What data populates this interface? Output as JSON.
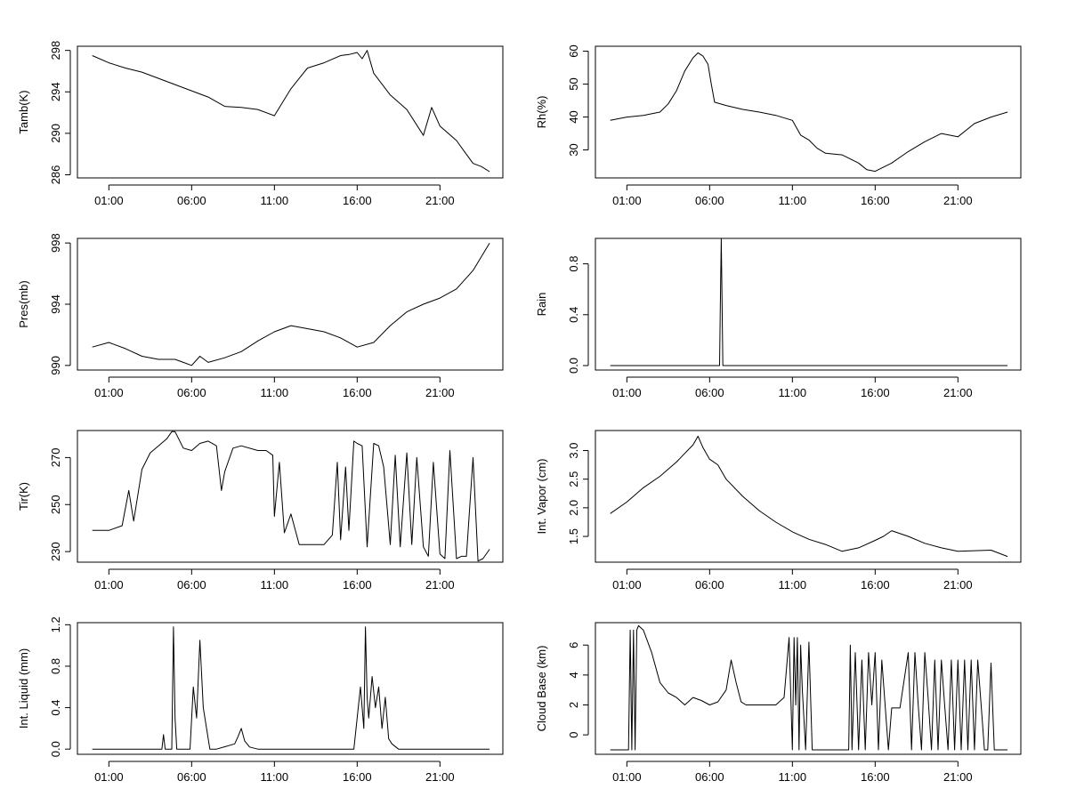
{
  "chart_data": [
    {
      "type": "line",
      "ylabel": "Tamb(K)",
      "xlabel": "",
      "title": "",
      "grid": false,
      "x_ticks": [
        "01:00",
        "06:00",
        "11:00",
        "16:00",
        "21:00"
      ],
      "x_tick_hours": [
        1,
        6,
        11,
        16,
        21
      ],
      "xlim_hours": [
        -0.9,
        24.8
      ],
      "ylim": [
        285.7,
        298.4
      ],
      "y_ticks": [
        286,
        290,
        294,
        298
      ],
      "y_tick_labels": [
        "286",
        "290",
        "294",
        "298"
      ],
      "series": [
        {
          "x": [
            0,
            1,
            2,
            3,
            4,
            5,
            6,
            7,
            8,
            9,
            10,
            11,
            11.5,
            12,
            12.5,
            13,
            14,
            15,
            15.5,
            16,
            16.3,
            16.6,
            17,
            18,
            19,
            20,
            20.5,
            21,
            22,
            22.5,
            23,
            23.5,
            24
          ],
          "values": [
            297.5,
            296.8,
            296.3,
            295.9,
            295.3,
            294.7,
            294.1,
            293.5,
            292.6,
            292.5,
            292.3,
            291.7,
            293.0,
            294.3,
            295.3,
            296.3,
            296.8,
            297.5,
            297.6,
            297.8,
            297.2,
            298.0,
            295.8,
            293.7,
            292.3,
            289.8,
            292.5,
            290.7,
            289.3,
            288.2,
            287.1,
            286.8,
            286.3
          ]
        }
      ]
    },
    {
      "type": "line",
      "ylabel": "Rh(%)",
      "xlabel": "",
      "title": "",
      "grid": false,
      "x_ticks": [
        "01:00",
        "06:00",
        "11:00",
        "16:00",
        "21:00"
      ],
      "x_tick_hours": [
        1,
        6,
        11,
        16,
        21
      ],
      "xlim_hours": [
        -0.9,
        24.8
      ],
      "ylim": [
        21.5,
        61.5
      ],
      "y_ticks": [
        30,
        40,
        50,
        60
      ],
      "y_tick_labels": [
        "30",
        "40",
        "50",
        "60"
      ],
      "series": [
        {
          "x": [
            0,
            1,
            2,
            3,
            3.5,
            4,
            4.5,
            5,
            5.3,
            5.6,
            5.9,
            6.1,
            6.3,
            7,
            8,
            9,
            10,
            11,
            11.5,
            12,
            12.5,
            13,
            14,
            15,
            15.5,
            16,
            17,
            18,
            19,
            20,
            21,
            22,
            23,
            24
          ],
          "values": [
            39.0,
            40.0,
            40.5,
            41.5,
            44.0,
            48.0,
            54.0,
            58.0,
            59.5,
            58.5,
            56.0,
            50.0,
            44.5,
            43.5,
            42.3,
            41.5,
            40.5,
            39.0,
            34.5,
            33.0,
            30.5,
            29.0,
            28.5,
            26.0,
            24.0,
            23.5,
            26.0,
            29.5,
            32.5,
            35.0,
            34.0,
            38.0,
            40.0,
            41.5
          ]
        }
      ]
    },
    {
      "type": "line",
      "ylabel": "Pres(mb)",
      "xlabel": "",
      "title": "",
      "grid": false,
      "x_ticks": [
        "01:00",
        "06:00",
        "11:00",
        "16:00",
        "21:00"
      ],
      "x_tick_hours": [
        1,
        6,
        11,
        16,
        21
      ],
      "xlim_hours": [
        -0.9,
        24.8
      ],
      "ylim": [
        989.7,
        998.3
      ],
      "y_ticks": [
        990,
        994,
        998
      ],
      "y_tick_labels": [
        "990",
        "994",
        "998"
      ],
      "series": [
        {
          "x": [
            0,
            1,
            2,
            3,
            4,
            5,
            5.5,
            6,
            6.5,
            7,
            8,
            9,
            10,
            11,
            12,
            13,
            14,
            15,
            16,
            17,
            18,
            19,
            20,
            21,
            22,
            23,
            24
          ],
          "values": [
            991.2,
            991.5,
            991.1,
            990.6,
            990.4,
            990.4,
            990.2,
            990.0,
            990.6,
            990.2,
            990.5,
            990.9,
            991.6,
            992.2,
            992.6,
            992.4,
            992.2,
            991.8,
            991.2,
            991.5,
            992.6,
            993.5,
            994.0,
            994.4,
            995.0,
            996.2,
            998.0
          ]
        }
      ]
    },
    {
      "type": "line",
      "ylabel": "Rain",
      "xlabel": "",
      "title": "",
      "grid": false,
      "x_ticks": [
        "01:00",
        "06:00",
        "11:00",
        "16:00",
        "21:00"
      ],
      "x_tick_hours": [
        1,
        6,
        11,
        16,
        21
      ],
      "xlim_hours": [
        -0.9,
        24.8
      ],
      "ylim": [
        -0.035,
        1.0
      ],
      "y_ticks": [
        0.0,
        0.4,
        0.8
      ],
      "y_tick_labels": [
        "0.0",
        "0.4",
        "0.8"
      ],
      "series": [
        {
          "x": [
            0,
            6.6,
            6.65,
            6.7,
            6.75,
            6.8,
            24
          ],
          "values": [
            0,
            0,
            0.5,
            1.0,
            0.5,
            0,
            0
          ]
        }
      ]
    },
    {
      "type": "line",
      "ylabel": "Tir(K)",
      "xlabel": "",
      "title": "",
      "grid": false,
      "x_ticks": [
        "01:00",
        "06:00",
        "11:00",
        "16:00",
        "21:00"
      ],
      "x_tick_hours": [
        1,
        6,
        11,
        16,
        21
      ],
      "xlim_hours": [
        -0.9,
        24.8
      ],
      "ylim": [
        225.5,
        281.5
      ],
      "y_ticks": [
        230,
        250,
        270
      ],
      "y_tick_labels": [
        "230",
        "250",
        "270"
      ],
      "series": [
        {
          "x": [
            0,
            1,
            1.8,
            2.2,
            2.5,
            3,
            3.5,
            4,
            4.5,
            4.8,
            5,
            5.5,
            6,
            6.5,
            7,
            7.5,
            7.8,
            8,
            8.5,
            9,
            10,
            10.5,
            10.9,
            11,
            11.3,
            11.6,
            12,
            12.5,
            13,
            14,
            14.5,
            14.8,
            15,
            15.3,
            15.5,
            15.8,
            16,
            16.3,
            16.6,
            17,
            17.3,
            17.6,
            18,
            18.3,
            18.6,
            19,
            19.3,
            19.6,
            20,
            20.3,
            20.6,
            21,
            21.3,
            21.6,
            22,
            22.3,
            22.6,
            23,
            23.3,
            23.6,
            24
          ],
          "values": [
            239,
            239,
            241,
            256,
            243,
            265,
            272,
            275,
            278,
            281,
            281,
            274,
            273,
            276,
            277,
            275,
            256,
            264,
            274,
            275,
            273,
            273,
            271,
            245,
            268,
            238,
            246,
            233,
            233,
            233,
            237,
            268,
            235,
            266,
            239,
            277,
            276,
            275,
            232,
            276,
            275,
            266,
            233,
            271,
            232,
            272,
            233,
            270,
            232,
            228,
            268,
            229,
            227,
            273,
            227,
            228,
            228,
            270,
            226,
            227,
            231
          ]
        }
      ]
    },
    {
      "type": "line",
      "ylabel": "Int. Vapor (cm)",
      "xlabel": "",
      "title": "",
      "grid": false,
      "x_ticks": [
        "01:00",
        "06:00",
        "11:00",
        "16:00",
        "21:00"
      ],
      "x_tick_hours": [
        1,
        6,
        11,
        16,
        21
      ],
      "xlim_hours": [
        -0.9,
        24.8
      ],
      "ylim": [
        1.05,
        3.35
      ],
      "y_ticks": [
        1.5,
        2.0,
        2.5,
        3.0
      ],
      "y_tick_labels": [
        "1.5",
        "2.0",
        "2.5",
        "3.0"
      ],
      "series": [
        {
          "x": [
            0,
            1,
            2,
            3,
            4,
            4.5,
            5,
            5.3,
            5.6,
            6,
            6.5,
            7,
            8,
            9,
            10,
            11,
            12,
            13,
            14,
            15,
            16,
            16.5,
            17,
            18,
            19,
            20,
            21,
            22,
            23,
            24
          ],
          "values": [
            1.9,
            2.1,
            2.35,
            2.55,
            2.8,
            2.95,
            3.1,
            3.25,
            3.05,
            2.85,
            2.75,
            2.5,
            2.2,
            1.95,
            1.75,
            1.58,
            1.45,
            1.36,
            1.24,
            1.3,
            1.43,
            1.5,
            1.6,
            1.5,
            1.38,
            1.3,
            1.24,
            1.25,
            1.26,
            1.15
          ]
        }
      ]
    },
    {
      "type": "line",
      "ylabel": "Int. Liquid (mm)",
      "xlabel": "",
      "title": "",
      "grid": false,
      "x_ticks": [
        "01:00",
        "06:00",
        "11:00",
        "16:00",
        "21:00"
      ],
      "x_tick_hours": [
        1,
        6,
        11,
        16,
        21
      ],
      "xlim_hours": [
        -0.9,
        24.8
      ],
      "ylim": [
        -0.05,
        1.22
      ],
      "y_ticks": [
        0.0,
        0.4,
        0.8,
        1.2
      ],
      "y_tick_labels": [
        "0.0",
        "0.4",
        "0.8",
        "1.2"
      ],
      "series": [
        {
          "x": [
            0,
            4.2,
            4.3,
            4.4,
            4.8,
            4.9,
            5.0,
            5.1,
            5.9,
            6.1,
            6.3,
            6.5,
            6.7,
            6.9,
            7.1,
            7.5,
            8.6,
            8.8,
            9.0,
            9.2,
            9.5,
            10,
            15.8,
            16.0,
            16.2,
            16.4,
            16.5,
            16.6,
            16.7,
            16.9,
            17.1,
            17.3,
            17.5,
            17.7,
            17.9,
            18.1,
            18.5,
            24
          ],
          "values": [
            0,
            0,
            0.14,
            0,
            0,
            1.18,
            0.3,
            0,
            0,
            0.6,
            0.3,
            1.05,
            0.4,
            0.2,
            0,
            0,
            0.05,
            0.12,
            0.2,
            0.08,
            0.02,
            0,
            0,
            0.3,
            0.6,
            0.2,
            1.18,
            0.5,
            0.3,
            0.7,
            0.4,
            0.6,
            0.2,
            0.5,
            0.1,
            0.05,
            0,
            0
          ]
        }
      ]
    },
    {
      "type": "line",
      "ylabel": "Cloud Base (km)",
      "xlabel": "",
      "title": "",
      "grid": false,
      "x_ticks": [
        "01:00",
        "06:00",
        "11:00",
        "16:00",
        "21:00"
      ],
      "x_tick_hours": [
        1,
        6,
        11,
        16,
        21
      ],
      "xlim_hours": [
        -0.9,
        24.8
      ],
      "ylim": [
        -1.3,
        7.5
      ],
      "y_ticks": [
        0,
        2,
        4,
        6
      ],
      "y_tick_labels": [
        "0",
        "2",
        "4",
        "6"
      ],
      "series": [
        {
          "x": [
            0,
            1.1,
            1.2,
            1.3,
            1.4,
            1.5,
            1.6,
            1.7,
            2.0,
            2.5,
            3.0,
            3.5,
            4.0,
            4.5,
            5.0,
            5.5,
            6.0,
            6.5,
            7.0,
            7.3,
            7.6,
            7.9,
            8.2,
            8.5,
            9.0,
            10.0,
            10.5,
            10.8,
            11.0,
            11.1,
            11.2,
            11.3,
            11.4,
            11.5,
            11.6,
            11.8,
            12.0,
            12.2,
            12.3,
            14.4,
            14.5,
            14.6,
            14.8,
            15.0,
            15.2,
            15.4,
            15.6,
            15.8,
            16.0,
            16.2,
            16.4,
            16.6,
            16.8,
            17.0,
            17.5,
            18.0,
            18.2,
            18.4,
            18.6,
            18.8,
            19.0,
            19.2,
            19.4,
            19.6,
            19.8,
            20.0,
            20.2,
            20.4,
            20.6,
            20.8,
            21.0,
            21.2,
            21.4,
            21.6,
            21.8,
            22.0,
            22.2,
            22.4,
            22.6,
            22.8,
            23.0,
            23.1,
            23.2,
            23.3,
            23.4,
            24.0
          ],
          "values": [
            -1,
            -1,
            7,
            -1,
            7,
            -1,
            7,
            7.3,
            7.0,
            5.5,
            3.5,
            2.8,
            2.5,
            2.0,
            2.5,
            2.3,
            2.0,
            2.2,
            3.0,
            5.0,
            3.5,
            2.2,
            2.0,
            2.0,
            2.0,
            2.0,
            2.5,
            6.5,
            -1,
            6.5,
            2.0,
            6.5,
            -1,
            6.0,
            3.0,
            -1,
            6.2,
            -1,
            -1,
            -1,
            6.0,
            -1,
            5.5,
            -1,
            5.0,
            -1,
            5.5,
            2.0,
            5.5,
            -1,
            5.0,
            2.0,
            -1,
            1.8,
            1.8,
            5.5,
            -1,
            5.5,
            2.0,
            -1,
            5.5,
            2.5,
            -1,
            5.0,
            -1,
            5.0,
            2.0,
            -1,
            5.0,
            -1,
            5.0,
            -1,
            5.0,
            -1,
            5.0,
            -1,
            5.0,
            2.0,
            -1,
            -1,
            4.8,
            1.8,
            -1,
            -1,
            -1,
            -1
          ]
        }
      ]
    }
  ]
}
